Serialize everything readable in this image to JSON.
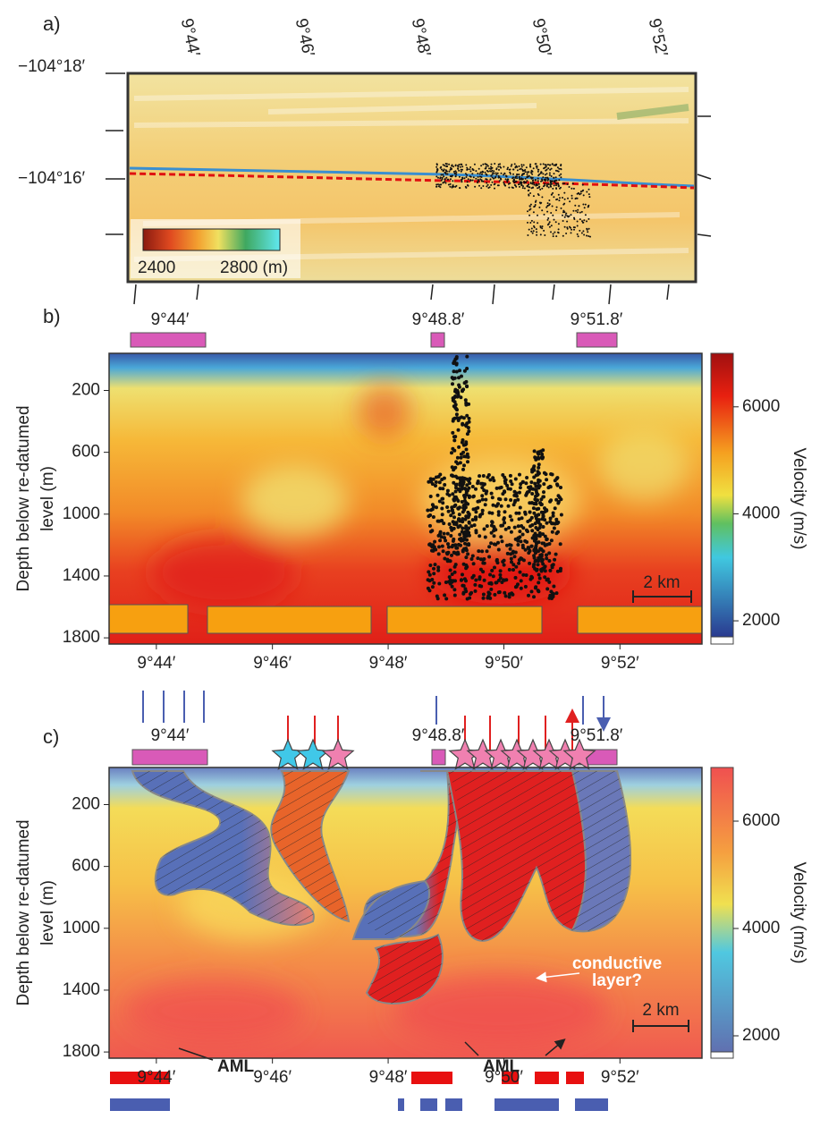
{
  "panels": [
    {
      "label": "a)",
      "lon_labels": [
        "9°44′",
        "9°46′",
        "9°48′",
        "9°50′",
        "9°52′"
      ],
      "lat_labels": [
        "−104°18′",
        "−104°16′"
      ],
      "colorbar_labels": [
        "2400",
        "2800 (m)"
      ]
    },
    {
      "label": "b)",
      "top_labels": [
        "9°44′",
        "9°48.8′",
        "9°51.8′"
      ],
      "ylabel": [
        "Depth below re-datumed",
        "level (m)"
      ],
      "ylim": [
        -40,
        1840
      ],
      "yticks": [
        200,
        600,
        1000,
        1400,
        1800
      ],
      "xlim": [
        9.7197,
        9.8903
      ],
      "xticks": [
        {
          "value": 9.7333,
          "label": "9°44′"
        },
        {
          "value": 9.7667,
          "label": "9°46′"
        },
        {
          "value": 9.8,
          "label": "9°48′"
        },
        {
          "value": 9.8333,
          "label": "9°50′"
        },
        {
          "value": 9.8667,
          "label": "9°52′"
        }
      ],
      "clim": [
        1700,
        7000
      ],
      "cticks": [
        2000,
        4000,
        6000
      ],
      "clabel": "Velocity (m/s)",
      "scalebar": "2 km"
    },
    {
      "label": "c)",
      "top_labels": [
        "9°44′",
        "9°48.8′",
        "9°51.8′"
      ],
      "ylabel": [
        "Depth below re-datumed",
        "level (m)"
      ],
      "ylim": [
        -40,
        1840
      ],
      "yticks": [
        200,
        600,
        1000,
        1400,
        1800
      ],
      "xlim": [
        9.7197,
        9.8903
      ],
      "xticks": [
        {
          "value": 9.7333,
          "label": "9°44′"
        },
        {
          "value": 9.7667,
          "label": "9°46′"
        },
        {
          "value": 9.8,
          "label": "9°48′"
        },
        {
          "value": 9.8333,
          "label": "9°50′"
        },
        {
          "value": 9.8667,
          "label": "9°52′"
        }
      ],
      "clim": [
        1700,
        7000
      ],
      "cticks": [
        2000,
        4000,
        6000
      ],
      "clabel": "Velocity (m/s)",
      "scalebar": "2 km",
      "annotations": [
        "AML",
        "AML",
        "conductive",
        "layer?"
      ]
    }
  ]
}
